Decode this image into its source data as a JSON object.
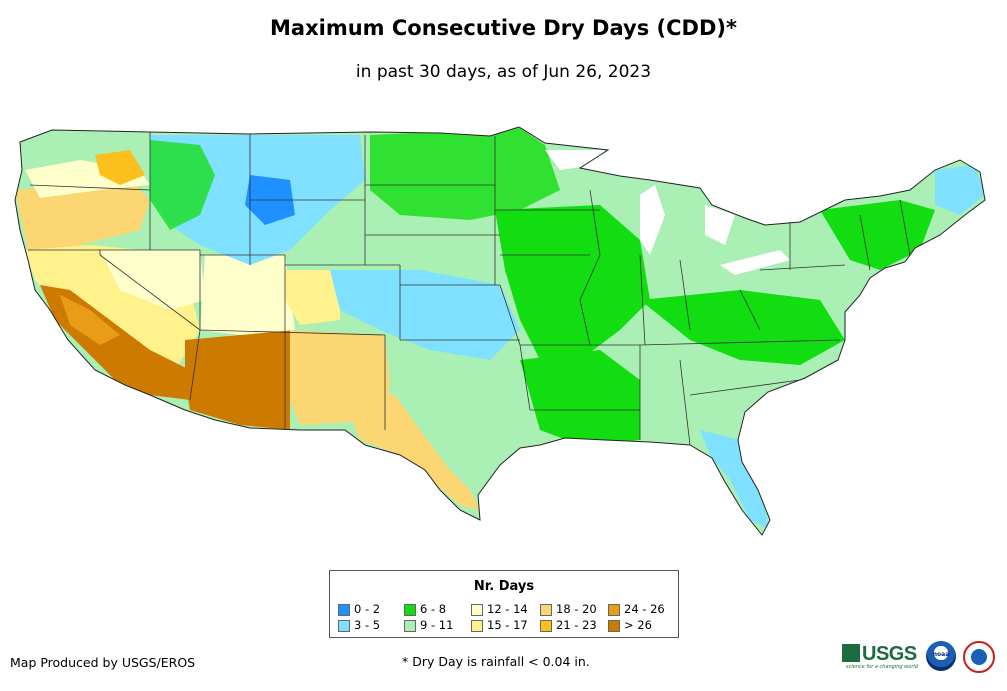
{
  "title": "Maximum Consecutive Dry Days (CDD)*",
  "subtitle": "in past 30 days, as of Jun 26, 2023",
  "legend": {
    "title": "Nr. Days",
    "items": [
      {
        "label": "0 - 2",
        "color": "#1e90ff"
      },
      {
        "label": "3 - 5",
        "color": "#7fe0ff"
      },
      {
        "label": "6 - 8",
        "color": "#11dd11"
      },
      {
        "label": "9 - 11",
        "color": "#aaf0b4"
      },
      {
        "label": "12 - 14",
        "color": "#ffffcc"
      },
      {
        "label": "15 - 17",
        "color": "#fff28c"
      },
      {
        "label": "18 - 20",
        "color": "#fcd673"
      },
      {
        "label": "21 - 23",
        "color": "#fcbf1e"
      },
      {
        "label": "24 - 26",
        "color": "#e89c18"
      },
      {
        "label": "> 26",
        "color": "#cc7a00"
      }
    ]
  },
  "credit": "Map Produced by USGS/EROS",
  "footnote": "* Dry Day is rainfall < 0.04 in.",
  "logos": {
    "usgs": "USGS",
    "usgs_tagline": "science for a changing world",
    "noaa": "noaa",
    "nws": "NATIONAL WEATHER SERVICE"
  }
}
